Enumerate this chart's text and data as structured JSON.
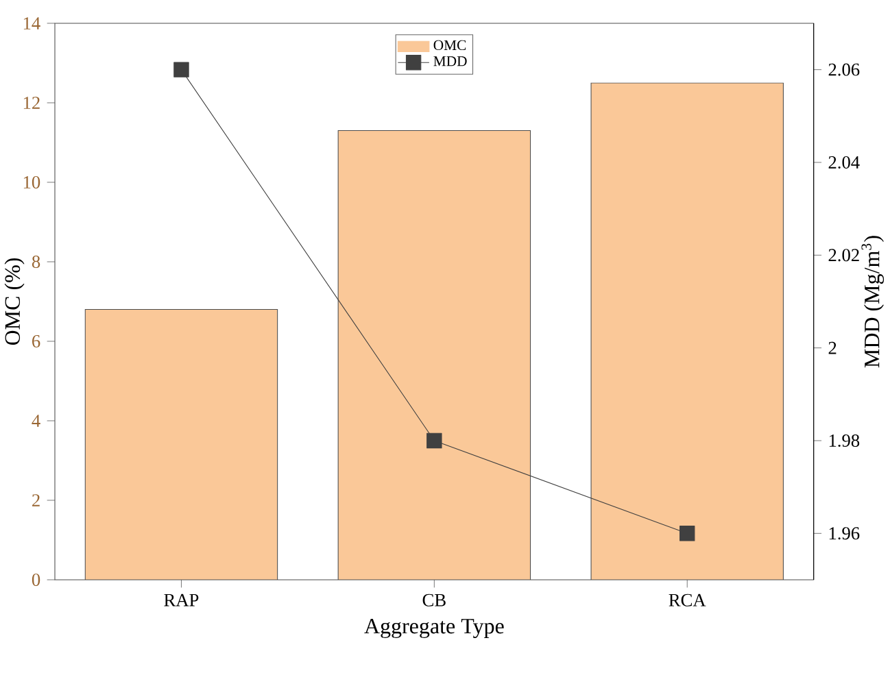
{
  "chart_data": {
    "type": "bar",
    "xlabel": "Aggregate Type",
    "ylabel": "OMC (%)",
    "y2label": "MDD (Mg/m$^{3}$)",
    "categories": [
      "RAP",
      "CB",
      "RCA"
    ],
    "series": [
      {
        "name": "OMC",
        "color": "#fac898",
        "values": [
          6.8,
          11.3,
          12.5
        ]
      },
      {
        "name": "MDD",
        "type": "line",
        "axis": "y2",
        "color": "#404040",
        "values": [
          2.06,
          1.98,
          1.96
        ]
      }
    ],
    "ylim": [
      0,
      14
    ],
    "yticks": [
      0,
      2,
      4,
      6,
      8,
      10,
      12,
      14
    ],
    "y2lim": [
      1.95,
      2.07
    ],
    "y2ticks": [
      {
        "value": 1.96,
        "label": "1.96"
      },
      {
        "value": 1.98,
        "label": "1.98"
      },
      {
        "value": 2.0,
        "label": "2"
      },
      {
        "value": 2.02,
        "label": "2.02"
      },
      {
        "value": 2.04,
        "label": "2.04"
      },
      {
        "value": 2.06,
        "label": "2.06"
      }
    ],
    "legend": "top",
    "marker": "square",
    "line_style": "solid",
    "grid": false
  }
}
